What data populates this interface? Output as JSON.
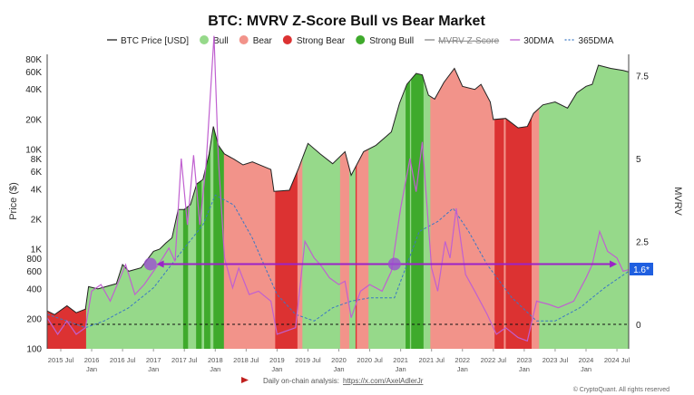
{
  "chart_data": {
    "type": "area",
    "title": "BTC: MVRV Z-Score Bull vs Bear Market",
    "ylabel": "Price ($)",
    "y2label": "MVRV",
    "legend": [
      "BTC Price [USD]",
      "Bull",
      "Bear",
      "Strong Bear",
      "Strong Bull",
      "MVRV Z-Score",
      "30DMA",
      "365DMA"
    ],
    "legend_placement": "top",
    "colors": {
      "bull": "#96d98a",
      "bear": "#f2938a",
      "strong_bear": "#dc3232",
      "strong_bull": "#3faa2c",
      "dma30": "#c060d0",
      "dma365": "#3b78c4",
      "arrow": "#9b22c8",
      "badge": "#1f5fe0"
    },
    "ylim": [
      100,
      90000
    ],
    "y_ticks": [
      {
        "v": 100,
        "l": "100"
      },
      {
        "v": 200,
        "l": "200"
      },
      {
        "v": 400,
        "l": "400"
      },
      {
        "v": 600,
        "l": "600"
      },
      {
        "v": 800,
        "l": "800"
      },
      {
        "v": 1000,
        "l": "1K"
      },
      {
        "v": 2000,
        "l": "2K"
      },
      {
        "v": 4000,
        "l": "4K"
      },
      {
        "v": 6000,
        "l": "6K"
      },
      {
        "v": 8000,
        "l": "8K"
      },
      {
        "v": 10000,
        "l": "10K"
      },
      {
        "v": 20000,
        "l": "20K"
      },
      {
        "v": 40000,
        "l": "40K"
      },
      {
        "v": 60000,
        "l": "60K"
      },
      {
        "v": 80000,
        "l": "80K"
      }
    ],
    "y2lim": [
      -0.75,
      8.2
    ],
    "y2_ticks": [
      {
        "v": 0,
        "l": "0"
      },
      {
        "v": 2.5,
        "l": "2.5"
      },
      {
        "v": 5,
        "l": "5"
      },
      {
        "v": 7.5,
        "l": "7.5"
      }
    ],
    "xlim": [
      2015.28,
      2024.69
    ],
    "x_ticks": [
      {
        "v": 2015.5,
        "l": "2015 Jul",
        "l2": ""
      },
      {
        "v": 2016,
        "l": "2016",
        "l2": "Jan"
      },
      {
        "v": 2016.5,
        "l": "2016 Jul",
        "l2": ""
      },
      {
        "v": 2017,
        "l": "2017",
        "l2": "Jan"
      },
      {
        "v": 2017.5,
        "l": "2017 Jul",
        "l2": ""
      },
      {
        "v": 2018,
        "l": "2018",
        "l2": "Jan"
      },
      {
        "v": 2018.5,
        "l": "2018 Jul",
        "l2": ""
      },
      {
        "v": 2019,
        "l": "2019",
        "l2": "Jan"
      },
      {
        "v": 2019.5,
        "l": "2019 Jul",
        "l2": ""
      },
      {
        "v": 2020,
        "l": "2020",
        "l2": "Jan"
      },
      {
        "v": 2020.5,
        "l": "2020 Jul",
        "l2": ""
      },
      {
        "v": 2021,
        "l": "2021",
        "l2": "Jan"
      },
      {
        "v": 2021.5,
        "l": "2021 Jul",
        "l2": ""
      },
      {
        "v": 2022,
        "l": "2022",
        "l2": "Jan"
      },
      {
        "v": 2022.5,
        "l": "2022 Jul",
        "l2": ""
      },
      {
        "v": 2023,
        "l": "2023",
        "l2": "Jan"
      },
      {
        "v": 2023.5,
        "l": "2023 Jul",
        "l2": ""
      },
      {
        "v": 2024,
        "l": "2024",
        "l2": "Jan"
      },
      {
        "v": 2024.5,
        "l": "2024 Jul",
        "l2": ""
      }
    ],
    "regions": [
      {
        "from": 2015.28,
        "to": 2015.91,
        "type": "strong_bear"
      },
      {
        "from": 2015.91,
        "to": 2017.48,
        "type": "bull"
      },
      {
        "from": 2017.48,
        "to": 2017.56,
        "type": "strong_bull"
      },
      {
        "from": 2017.56,
        "to": 2017.69,
        "type": "bull"
      },
      {
        "from": 2017.69,
        "to": 2017.78,
        "type": "strong_bull"
      },
      {
        "from": 2017.78,
        "to": 2017.82,
        "type": "bull"
      },
      {
        "from": 2017.82,
        "to": 2017.92,
        "type": "strong_bull"
      },
      {
        "from": 2017.92,
        "to": 2017.97,
        "type": "bull"
      },
      {
        "from": 2017.97,
        "to": 2018.14,
        "type": "strong_bull"
      },
      {
        "from": 2018.14,
        "to": 2018.97,
        "type": "bear"
      },
      {
        "from": 2018.97,
        "to": 2019.33,
        "type": "strong_bear"
      },
      {
        "from": 2019.33,
        "to": 2019.41,
        "type": "bear"
      },
      {
        "from": 2019.41,
        "to": 2020.02,
        "type": "bull"
      },
      {
        "from": 2020.02,
        "to": 2020.17,
        "type": "bear"
      },
      {
        "from": 2020.17,
        "to": 2020.27,
        "type": "bull"
      },
      {
        "from": 2020.27,
        "to": 2020.29,
        "type": "strong_bear"
      },
      {
        "from": 2020.29,
        "to": 2020.48,
        "type": "bear"
      },
      {
        "from": 2020.48,
        "to": 2021.08,
        "type": "bull"
      },
      {
        "from": 2021.08,
        "to": 2021.15,
        "type": "strong_bull"
      },
      {
        "from": 2021.15,
        "to": 2021.17,
        "type": "bull"
      },
      {
        "from": 2021.17,
        "to": 2021.37,
        "type": "strong_bull"
      },
      {
        "from": 2021.37,
        "to": 2021.48,
        "type": "bull"
      },
      {
        "from": 2021.48,
        "to": 2022.52,
        "type": "bear"
      },
      {
        "from": 2022.52,
        "to": 2022.67,
        "type": "strong_bear"
      },
      {
        "from": 2022.67,
        "to": 2022.7,
        "type": "bear"
      },
      {
        "from": 2022.7,
        "to": 2023.12,
        "type": "strong_bear"
      },
      {
        "from": 2023.12,
        "to": 2023.24,
        "type": "bear"
      },
      {
        "from": 2023.24,
        "to": 2024.69,
        "type": "bull"
      }
    ],
    "price": [
      [
        2015.28,
        240
      ],
      [
        2015.4,
        220
      ],
      [
        2015.6,
        270
      ],
      [
        2015.75,
        230
      ],
      [
        2015.9,
        250
      ],
      [
        2015.95,
        420
      ],
      [
        2016.1,
        400
      ],
      [
        2016.4,
        450
      ],
      [
        2016.5,
        700
      ],
      [
        2016.6,
        600
      ],
      [
        2016.8,
        650
      ],
      [
        2017.0,
        950
      ],
      [
        2017.1,
        1000
      ],
      [
        2017.2,
        1150
      ],
      [
        2017.3,
        1300
      ],
      [
        2017.4,
        2500
      ],
      [
        2017.5,
        2500
      ],
      [
        2017.6,
        2800
      ],
      [
        2017.7,
        4500
      ],
      [
        2017.8,
        5000
      ],
      [
        2017.9,
        9000
      ],
      [
        2017.97,
        17000
      ],
      [
        2018.05,
        11000
      ],
      [
        2018.15,
        9000
      ],
      [
        2018.3,
        8000
      ],
      [
        2018.45,
        7000
      ],
      [
        2018.6,
        7500
      ],
      [
        2018.9,
        6300
      ],
      [
        2018.95,
        3800
      ],
      [
        2019.2,
        3900
      ],
      [
        2019.35,
        6500
      ],
      [
        2019.5,
        11500
      ],
      [
        2019.7,
        9000
      ],
      [
        2019.9,
        7200
      ],
      [
        2020.1,
        9500
      ],
      [
        2020.2,
        5500
      ],
      [
        2020.4,
        9500
      ],
      [
        2020.6,
        11000
      ],
      [
        2020.85,
        15000
      ],
      [
        2020.98,
        29000
      ],
      [
        2021.1,
        45000
      ],
      [
        2021.25,
        58000
      ],
      [
        2021.35,
        56000
      ],
      [
        2021.45,
        35000
      ],
      [
        2021.55,
        32000
      ],
      [
        2021.7,
        47000
      ],
      [
        2021.87,
        65000
      ],
      [
        2022.0,
        43000
      ],
      [
        2022.2,
        40000
      ],
      [
        2022.3,
        45000
      ],
      [
        2022.45,
        30000
      ],
      [
        2022.5,
        20000
      ],
      [
        2022.7,
        20500
      ],
      [
        2022.9,
        16500
      ],
      [
        2023.05,
        17000
      ],
      [
        2023.15,
        23000
      ],
      [
        2023.3,
        28000
      ],
      [
        2023.5,
        30000
      ],
      [
        2023.7,
        26000
      ],
      [
        2023.85,
        37000
      ],
      [
        2024.0,
        43000
      ],
      [
        2024.1,
        45000
      ],
      [
        2024.2,
        70000
      ],
      [
        2024.4,
        65000
      ],
      [
        2024.6,
        62000
      ],
      [
        2024.69,
        60000
      ]
    ],
    "series": [
      {
        "name": "30DMA",
        "values": [
          [
            2015.28,
            0.2
          ],
          [
            2015.45,
            -0.3
          ],
          [
            2015.6,
            0.1
          ],
          [
            2015.75,
            -0.3
          ],
          [
            2015.9,
            -0.1
          ],
          [
            2016.0,
            1.0
          ],
          [
            2016.15,
            1.2
          ],
          [
            2016.3,
            0.7
          ],
          [
            2016.55,
            1.8
          ],
          [
            2016.7,
            0.9
          ],
          [
            2016.85,
            1.2
          ],
          [
            2017.0,
            1.6
          ],
          [
            2017.15,
            2.0
          ],
          [
            2017.25,
            2.3
          ],
          [
            2017.35,
            1.9
          ],
          [
            2017.45,
            5.0
          ],
          [
            2017.55,
            3.0
          ],
          [
            2017.65,
            5.1
          ],
          [
            2017.75,
            3.0
          ],
          [
            2017.85,
            4.8
          ],
          [
            2017.98,
            8.7
          ],
          [
            2018.05,
            5.0
          ],
          [
            2018.15,
            2.0
          ],
          [
            2018.28,
            1.1
          ],
          [
            2018.38,
            1.7
          ],
          [
            2018.55,
            0.9
          ],
          [
            2018.7,
            1.0
          ],
          [
            2018.9,
            0.7
          ],
          [
            2019.0,
            -0.3
          ],
          [
            2019.3,
            -0.1
          ],
          [
            2019.45,
            2.5
          ],
          [
            2019.6,
            2.0
          ],
          [
            2019.7,
            1.8
          ],
          [
            2019.85,
            1.4
          ],
          [
            2020.0,
            1.2
          ],
          [
            2020.1,
            1.3
          ],
          [
            2020.2,
            0.2
          ],
          [
            2020.35,
            1.0
          ],
          [
            2020.5,
            1.2
          ],
          [
            2020.7,
            1.0
          ],
          [
            2020.85,
            1.6
          ],
          [
            2021.0,
            3.5
          ],
          [
            2021.15,
            5.0
          ],
          [
            2021.25,
            4.0
          ],
          [
            2021.35,
            5.5
          ],
          [
            2021.5,
            1.7
          ],
          [
            2021.6,
            1.0
          ],
          [
            2021.72,
            2.5
          ],
          [
            2021.8,
            2.0
          ],
          [
            2021.9,
            3.5
          ],
          [
            2022.05,
            1.5
          ],
          [
            2022.2,
            1.0
          ],
          [
            2022.4,
            0.3
          ],
          [
            2022.55,
            -0.3
          ],
          [
            2022.7,
            -0.1
          ],
          [
            2022.9,
            -0.4
          ],
          [
            2023.05,
            -0.5
          ],
          [
            2023.2,
            0.7
          ],
          [
            2023.4,
            0.6
          ],
          [
            2023.55,
            0.5
          ],
          [
            2023.8,
            0.7
          ],
          [
            2024.0,
            1.4
          ],
          [
            2024.1,
            1.8
          ],
          [
            2024.22,
            2.8
          ],
          [
            2024.35,
            2.2
          ],
          [
            2024.5,
            2.0
          ],
          [
            2024.6,
            1.6
          ],
          [
            2024.69,
            1.65
          ]
        ]
      },
      {
        "name": "365DMA",
        "values": [
          [
            2015.28,
            0.3
          ],
          [
            2015.6,
            0.1
          ],
          [
            2015.9,
            -0.1
          ],
          [
            2016.2,
            0.1
          ],
          [
            2016.6,
            0.5
          ],
          [
            2017.0,
            1.1
          ],
          [
            2017.5,
            2.3
          ],
          [
            2017.8,
            3.0
          ],
          [
            2018.0,
            3.9
          ],
          [
            2018.3,
            3.6
          ],
          [
            2018.6,
            2.6
          ],
          [
            2019.0,
            0.9
          ],
          [
            2019.3,
            0.3
          ],
          [
            2019.6,
            0.1
          ],
          [
            2019.9,
            0.5
          ],
          [
            2020.2,
            0.7
          ],
          [
            2020.5,
            0.8
          ],
          [
            2020.9,
            0.8
          ],
          [
            2021.1,
            1.8
          ],
          [
            2021.3,
            2.8
          ],
          [
            2021.6,
            3.1
          ],
          [
            2021.85,
            3.5
          ],
          [
            2022.1,
            2.8
          ],
          [
            2022.4,
            1.8
          ],
          [
            2022.8,
            0.8
          ],
          [
            2023.2,
            0.1
          ],
          [
            2023.5,
            0.1
          ],
          [
            2023.9,
            0.5
          ],
          [
            2024.3,
            1.1
          ],
          [
            2024.69,
            1.6
          ]
        ]
      }
    ],
    "reference_line": {
      "value": 0,
      "style": "dashed"
    },
    "arrow": {
      "from": 2024.5,
      "to": 2017.05,
      "value": 1.6,
      "markers": [
        2016.95,
        2020.9
      ]
    },
    "badge_label": "1.6*",
    "footer_text": "Daily on-chain analysis: ",
    "footer_link": "https://x.com/AxelAdlerJr",
    "copyright": "© CryptoQuant. All rights reserved"
  }
}
